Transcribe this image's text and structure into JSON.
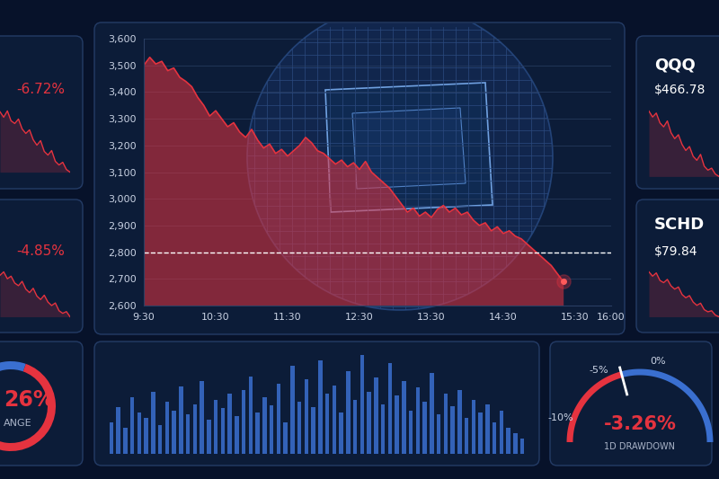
{
  "chart_data": [
    {
      "type": "area",
      "x": [
        570,
        575,
        580,
        585,
        590,
        595,
        600,
        605,
        610,
        615,
        620,
        625,
        630,
        635,
        640,
        645,
        650,
        655,
        660,
        665,
        670,
        675,
        680,
        685,
        690,
        695,
        700,
        705,
        710,
        715,
        720,
        725,
        730,
        735,
        740,
        745,
        750,
        755,
        760,
        765,
        770,
        775,
        780,
        785,
        790,
        795,
        800,
        805,
        810,
        815,
        820,
        825,
        830,
        835,
        840,
        845,
        850,
        855,
        860,
        865,
        870,
        875,
        880,
        885,
        890,
        895,
        900,
        905,
        910,
        915,
        920
      ],
      "values": [
        3500,
        3530,
        3505,
        3515,
        3480,
        3490,
        3455,
        3440,
        3420,
        3380,
        3350,
        3310,
        3330,
        3300,
        3270,
        3285,
        3250,
        3230,
        3260,
        3220,
        3190,
        3205,
        3170,
        3185,
        3160,
        3180,
        3200,
        3230,
        3210,
        3180,
        3170,
        3150,
        3130,
        3145,
        3120,
        3135,
        3110,
        3140,
        3100,
        3080,
        3060,
        3040,
        3010,
        2980,
        2950,
        2965,
        2935,
        2950,
        2930,
        2960,
        2975,
        2950,
        2965,
        2940,
        2950,
        2920,
        2900,
        2910,
        2880,
        2895,
        2870,
        2880,
        2860,
        2850,
        2830,
        2810,
        2790,
        2770,
        2750,
        2720,
        2690
      ],
      "color": "#e5333f",
      "threshold": 2800,
      "xlim": [
        570,
        960
      ],
      "xticks": [
        {
          "value": 570,
          "label": "9:30"
        },
        {
          "value": 630,
          "label": "10:30"
        },
        {
          "value": 690,
          "label": "11:30"
        },
        {
          "value": 750,
          "label": "12:30"
        },
        {
          "value": 810,
          "label": "13:30"
        },
        {
          "value": 870,
          "label": "14:30"
        },
        {
          "value": 930,
          "label": "15:30"
        },
        {
          "value": 960,
          "label": "16:00"
        }
      ],
      "ylim": [
        2600,
        3600
      ],
      "yticks": [
        {
          "value": 2600,
          "label": "2,600"
        },
        {
          "value": 2700,
          "label": "2,700"
        },
        {
          "value": 2800,
          "label": "2,800"
        },
        {
          "value": 2900,
          "label": "2,900"
        },
        {
          "value": 3000,
          "label": "3,000"
        },
        {
          "value": 3100,
          "label": "3,100"
        },
        {
          "value": 3200,
          "label": "3,200"
        },
        {
          "value": 3300,
          "label": "3,300"
        },
        {
          "value": 3400,
          "label": "3,400"
        },
        {
          "value": 3500,
          "label": "3,500"
        },
        {
          "value": 3600,
          "label": "3,600"
        }
      ],
      "grid": true
    },
    {
      "type": "line",
      "title": "-6.72%",
      "color": "#e5333f",
      "tick_labels": false,
      "values": [
        100,
        99.4,
        100.1,
        99.0,
        98.7,
        99.2,
        98.1,
        97.6,
        98.0,
        96.9,
        96.3,
        96.8,
        95.6,
        95.2,
        95.7,
        94.5,
        94.1,
        94.4,
        93.6,
        93.3
      ]
    },
    {
      "type": "line",
      "title": "-4.85%",
      "color": "#e5333f",
      "tick_labels": false,
      "values": [
        100,
        100.4,
        99.6,
        99.9,
        99.1,
        98.8,
        99.3,
        98.4,
        98.0,
        98.5,
        97.6,
        97.2,
        97.7,
        96.9,
        96.5,
        96.8,
        95.9,
        95.6,
        95.8,
        95.2
      ]
    },
    {
      "type": "line",
      "title": "QQQ",
      "subtitle": "$466.78",
      "color": "#e5333f",
      "tick_labels": false,
      "values": [
        500,
        497,
        499,
        494,
        492,
        495,
        489,
        486,
        488,
        483,
        480,
        482,
        477,
        475,
        478,
        472,
        470,
        471,
        468,
        466.78
      ]
    },
    {
      "type": "line",
      "title": "SCHD",
      "subtitle": "$79.84",
      "color": "#e5333f",
      "tick_labels": false,
      "values": [
        84,
        83.6,
        83.9,
        83.2,
        83.0,
        83.3,
        82.7,
        82.4,
        82.6,
        81.9,
        81.6,
        81.8,
        81.2,
        80.9,
        81.1,
        80.5,
        80.3,
        80.4,
        80.0,
        79.84
      ]
    },
    {
      "type": "donut",
      "value": 26,
      "label": "26%",
      "caption": "ANGE",
      "colors": [
        "#3a6fd0",
        "#e5333f"
      ]
    },
    {
      "type": "bar",
      "color": "#3a6fd0",
      "tick_labels": false,
      "values": [
        30,
        45,
        25,
        55,
        40,
        35,
        60,
        28,
        50,
        42,
        65,
        38,
        48,
        70,
        33,
        52,
        44,
        58,
        36,
        62,
        75,
        40,
        55,
        47,
        68,
        30,
        85,
        50,
        72,
        45,
        90,
        58,
        66,
        40,
        80,
        52,
        95,
        60,
        74,
        48,
        88,
        56,
        70,
        42,
        64,
        50,
        78,
        38,
        58,
        46,
        62,
        35,
        52,
        40,
        48,
        30,
        42,
        25,
        20,
        15
      ]
    },
    {
      "type": "gauge",
      "range": [
        -12,
        9
      ],
      "ticks": [
        {
          "value": -10,
          "label": "-10%"
        },
        {
          "value": -5,
          "label": "-5%"
        },
        {
          "value": 0,
          "label": "0%"
        }
      ],
      "value": -3.26,
      "label": "-3.26%",
      "caption": "1D DRAWDOWN",
      "colors": [
        "#e5333f",
        "#3a6fd0"
      ]
    }
  ]
}
